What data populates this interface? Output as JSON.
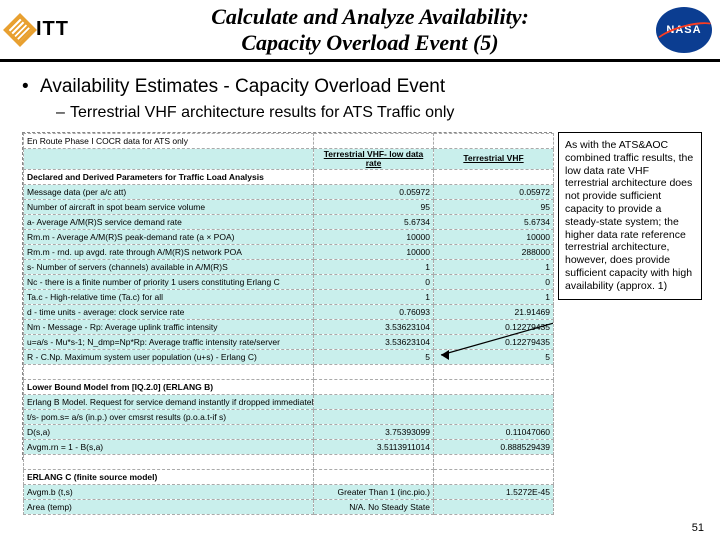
{
  "header": {
    "logo_left_text": "ITT",
    "title_line1": "Calculate and Analyze Availability:",
    "title_line2": "Capacity Overload Event (5)",
    "logo_right_text": "NASA"
  },
  "bullets": {
    "main": "Availability Estimates -  Capacity Overload Event",
    "sub": "Terrestrial VHF architecture results for ATS Traffic only"
  },
  "table": {
    "top_note": "En Route Phase I COCR data for ATS only",
    "col1_header": "Terrestrial VHF- low data rate",
    "col2_header": "Terrestrial VHF",
    "section1": "Declared and Derived Parameters for Traffic Load Analysis",
    "rows1": [
      {
        "label": "Message data (per a/c att)",
        "c1": "0.05972",
        "c2": "0.05972"
      },
      {
        "label": "Number of aircraft in spot beam service volume",
        "c1": "95",
        "c2": "95"
      },
      {
        "label": "a- Average A/M(R)S service demand rate",
        "c1": "5.6734",
        "c2": "5.6734"
      },
      {
        "label": "Rm.m - Average A/M(R)S peak-demand rate (a × POA)",
        "c1": "10000",
        "c2": "10000"
      },
      {
        "label": "Rm.m - rnd. up avgd. rate through A/M(R)S network POA",
        "c1": "10000",
        "c2": "288000"
      },
      {
        "label": "s- Number of servers (channels) available in A/M(R)S",
        "c1": "1",
        "c2": "1"
      },
      {
        "label": "Nc - there is a finite number of priority 1 users constituting Erlang C",
        "c1": "0",
        "c2": "0"
      },
      {
        "label": "Ta.c - High-relative time (Ta.c) for all",
        "c1": "1",
        "c2": "1"
      },
      {
        "label": "d - time units - average: clock service rate",
        "c1": "0.76093",
        "c2": "21.91469"
      },
      {
        "label": "Nm - Message - Rp: Average uplink traffic intensity",
        "c1": "3.53623104",
        "c2": "0.12279435"
      },
      {
        "label": "u=a/s - Mu*s-1; N_dmp=Np*Rp: Average traffic intensity rate/server",
        "c1": "3.53623104",
        "c2": "0.12279435"
      },
      {
        "label": "R - C.Np. Maximum system user population (u+s) - Erlang C)",
        "c1": "5",
        "c2": "5"
      }
    ],
    "section2": "Lower Bound Model from [IQ.2.0] (ERLANG B)",
    "rows2": [
      {
        "label": "Erlang B Model. Request for service demand instantly if dropped immediately",
        "c1": "",
        "c2": ""
      },
      {
        "label": "t/s- pom.s= a/s (in.p.) over cmsrst results (p.o.a.t-if s)",
        "c1": "",
        "c2": ""
      },
      {
        "label": "D(s,a)",
        "c1": "3.75393099",
        "c2": "0.11047060"
      },
      {
        "label": "Avgm.rn = 1 - B(s,a)",
        "c1": "3.5113911014",
        "c2": "0.888529439"
      }
    ],
    "section3": "ERLANG C (finite source model)",
    "rows3": [
      {
        "label": "Avgm.b (t,s)",
        "c1": "Greater Than 1 (inc.pio.)",
        "c2": "1.5272E-45"
      },
      {
        "label": "Area (temp)",
        "c1": "N/A. No Steady State",
        "c2": ""
      }
    ]
  },
  "callout": {
    "text": "As with the ATS&AOC combined traffic results, the low data rate VHF terrestrial architecture does not provide sufficient capacity to provide a steady-state system; the higher data rate reference terrestrial architecture, however, does provide sufficient capacity with high availability (approx. 1)"
  },
  "page_number": "51",
  "colors": {
    "table_fill": "#c9efec",
    "dash_border": "#aaaaaa",
    "itt_orange": "#e8a030",
    "nasa_blue": "#0b3d91",
    "nasa_red": "#fc3d21"
  }
}
